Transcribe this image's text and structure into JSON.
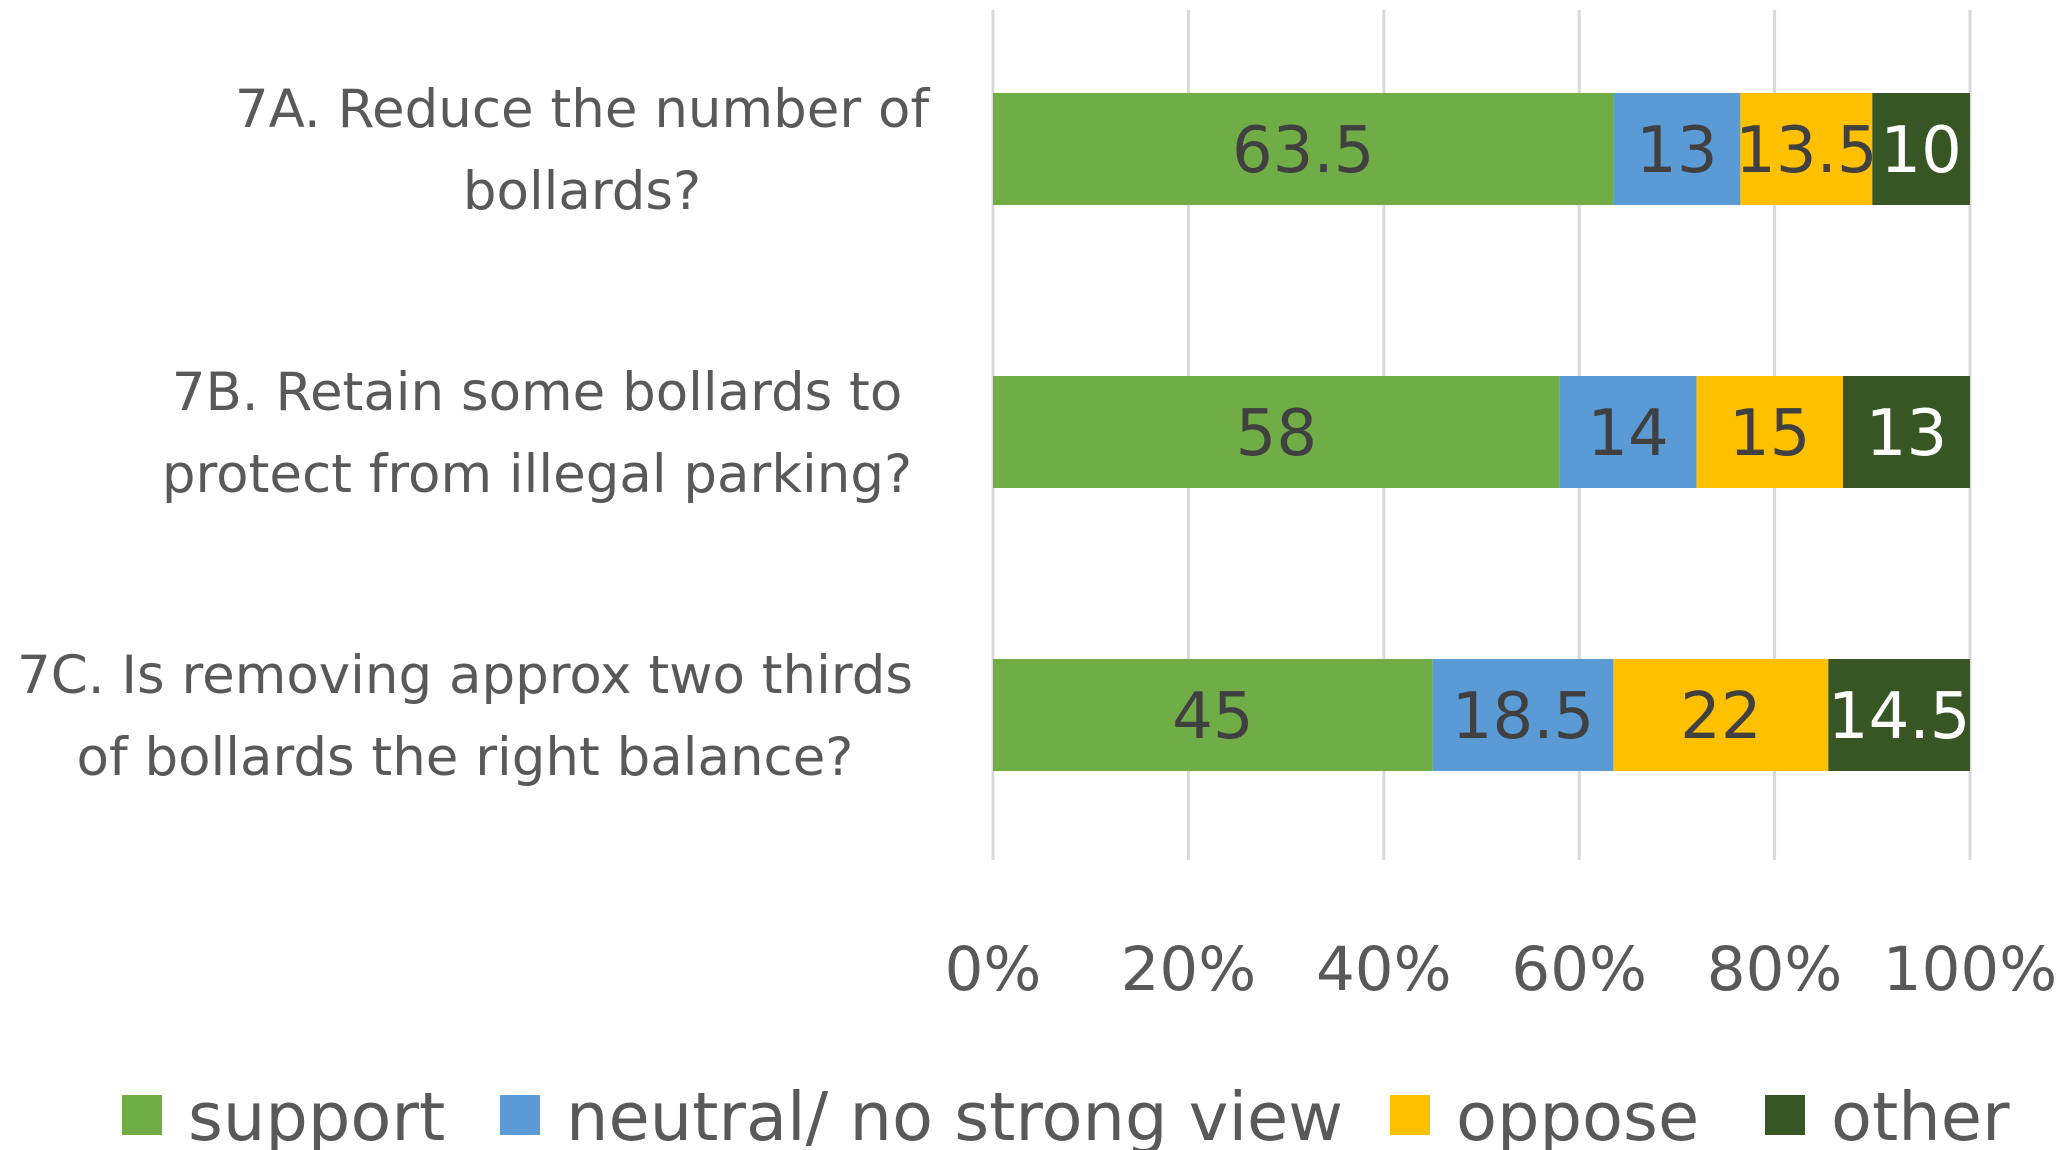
{
  "chart_data": {
    "type": "bar",
    "orientation": "horizontal",
    "stacked": "percent",
    "title": "",
    "xlabel": "",
    "ylabel": "",
    "categories": [
      [
        "7A. Reduce the number of",
        "bollards?"
      ],
      [
        "7B. Retain some bollards to",
        "protect from illegal parking?"
      ],
      [
        "7C. Is removing approx two thirds",
        "of bollards the right balance?"
      ]
    ],
    "series": [
      {
        "name": "support",
        "color": "#70ad47",
        "label_color": "#404040",
        "values": [
          63.5,
          58,
          45
        ]
      },
      {
        "name": "neutral/ no strong view",
        "color": "#5b9bd5",
        "label_color": "#404040",
        "values": [
          13,
          14,
          18.5
        ]
      },
      {
        "name": "oppose",
        "color": "#ffc000",
        "label_color": "#404040",
        "values": [
          13.5,
          15,
          22
        ]
      },
      {
        "name": "other",
        "color": "#375623",
        "label_color": "#ffffff",
        "values": [
          10,
          13,
          14.5
        ]
      }
    ],
    "xlim": [
      0,
      100
    ],
    "x_ticks": [
      "0%",
      "20%",
      "40%",
      "60%",
      "80%",
      "100%"
    ],
    "grid": true,
    "legend_position": "bottom"
  }
}
